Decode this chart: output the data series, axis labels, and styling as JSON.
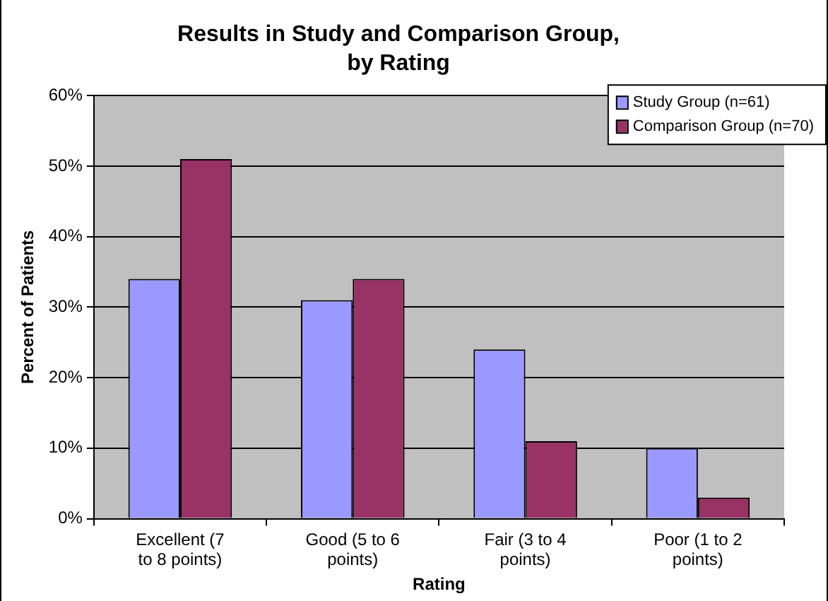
{
  "chart_data": {
    "type": "bar",
    "title": "Results in Study and Comparison Group, by Rating",
    "xlabel": "Rating",
    "ylabel": "Percent of Patients",
    "categories": [
      "Excellent (7 to 8 points)",
      "Good (5 to 6 points)",
      "Fair (3 to 4 points)",
      "Poor (1 to 2 points)"
    ],
    "series": [
      {
        "name": "Study Group (n=61)",
        "color": "#9999ff",
        "values": [
          34,
          31,
          24,
          10
        ]
      },
      {
        "name": "Comparison Group (n=70)",
        "color": "#993366",
        "values": [
          51,
          34,
          11,
          3
        ]
      }
    ],
    "ylim": [
      0,
      60
    ],
    "yticks": [
      {
        "value": 0,
        "label": "0%"
      },
      {
        "value": 10,
        "label": "10%"
      },
      {
        "value": 20,
        "label": "20%"
      },
      {
        "value": 30,
        "label": "30%"
      },
      {
        "value": 40,
        "label": "40%"
      },
      {
        "value": 50,
        "label": "50%"
      },
      {
        "value": 60,
        "label": "60%"
      }
    ],
    "grid": "y",
    "legend": "top right"
  }
}
